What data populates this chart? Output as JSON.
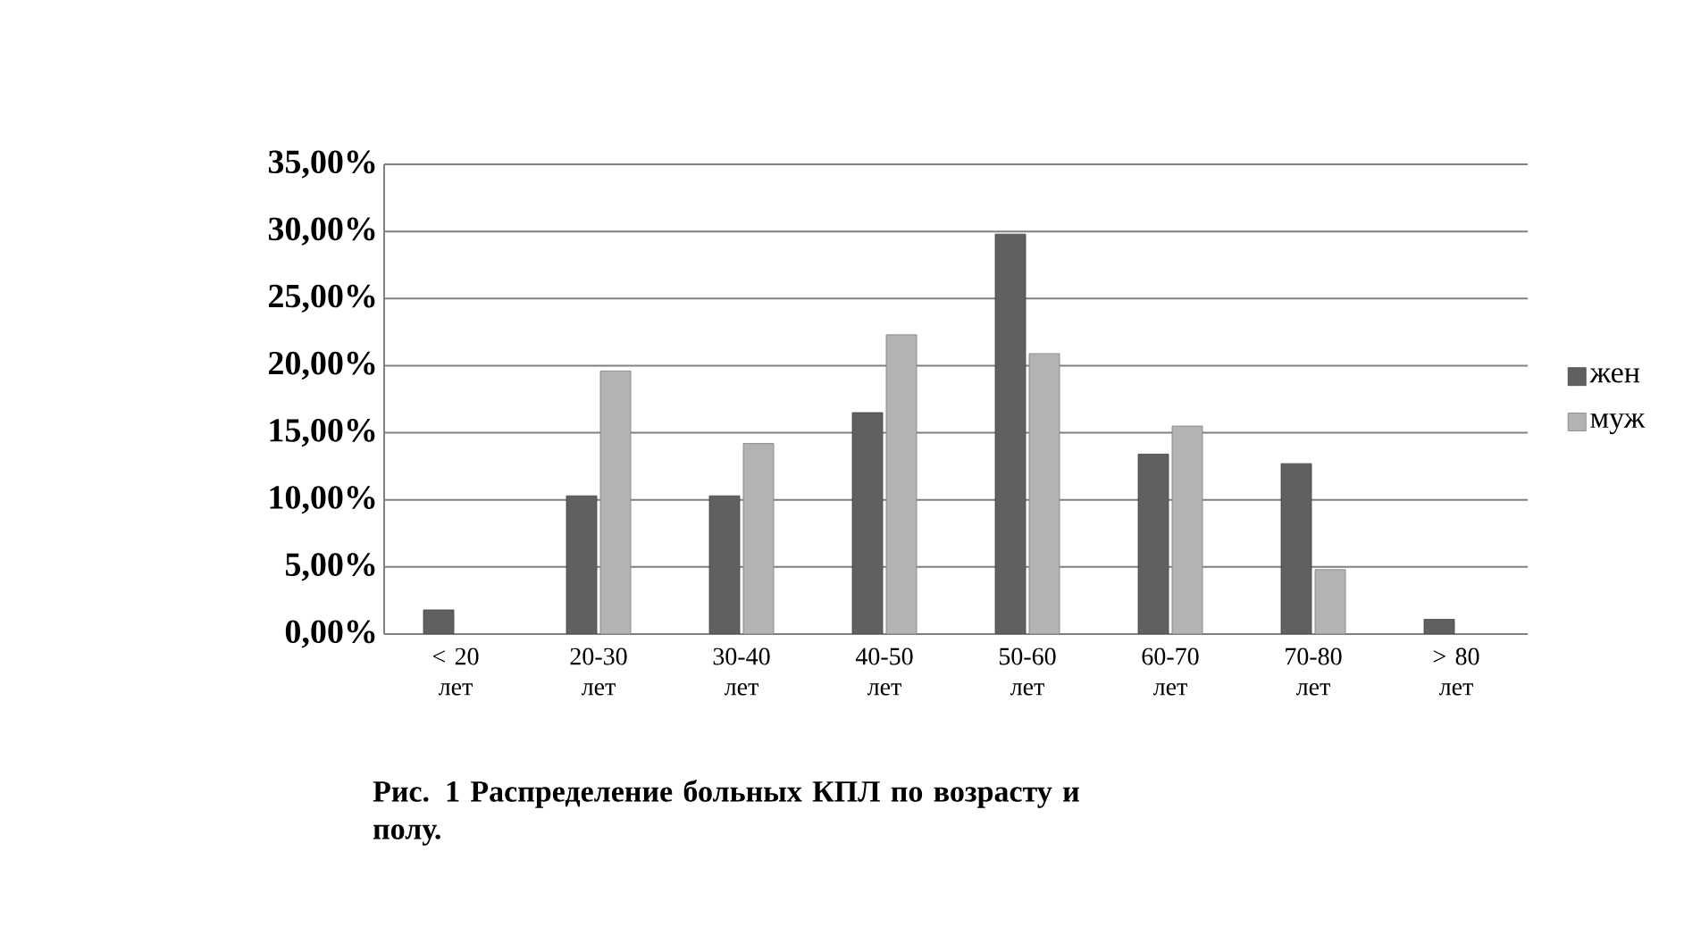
{
  "chart_data": {
    "type": "bar",
    "title": "Рис. 1 Распределение больных КПЛ по возрасту и полу.",
    "categories": [
      "< 20 лет",
      "20-30 лет",
      "30-40 лет",
      "40-50 лет",
      "50-60 лет",
      "60-70 лет",
      "70-80 лет",
      "> 80 лет"
    ],
    "series": [
      {
        "name": "жен",
        "color": "#606060",
        "values": [
          1.8,
          10.3,
          10.3,
          16.5,
          29.8,
          13.4,
          12.7,
          1.1
        ]
      },
      {
        "name": "муж",
        "color": "#b3b3b3",
        "values": [
          null,
          19.6,
          14.2,
          22.3,
          20.9,
          15.5,
          4.8,
          null
        ]
      }
    ],
    "ylim": [
      0,
      35
    ],
    "yticks": [
      {
        "value": 0,
        "label": "0,00%"
      },
      {
        "value": 5,
        "label": "5,00%"
      },
      {
        "value": 10,
        "label": "10,00%"
      },
      {
        "value": 15,
        "label": "15,00%"
      },
      {
        "value": 20,
        "label": "20,00%"
      },
      {
        "value": 25,
        "label": "25,00%"
      },
      {
        "value": 30,
        "label": "30,00%"
      },
      {
        "value": 35,
        "label": "35,00%"
      }
    ],
    "grid": "y",
    "legend": "right"
  }
}
